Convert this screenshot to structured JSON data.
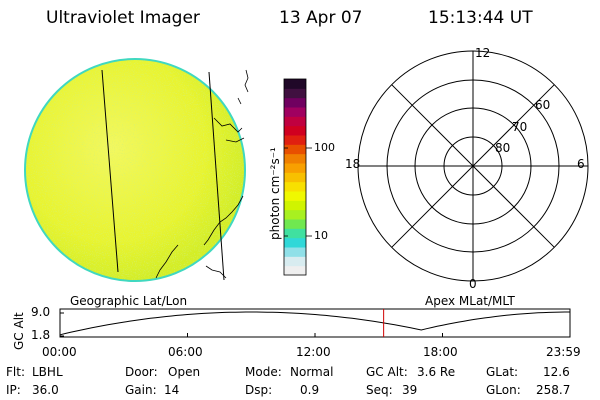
{
  "header": {
    "instrument": "Ultraviolet Imager",
    "date": "13 Apr 07",
    "time": "15:13:44 UT"
  },
  "colorbar": {
    "unit_label": "photon cm⁻²s⁻¹",
    "ticks": [
      "100",
      "10"
    ],
    "colors": [
      "#efefef",
      "#d8ecf0",
      "#90e0e8",
      "#30d8d8",
      "#40e0a0",
      "#70e850",
      "#a8f020",
      "#d0f400",
      "#f0f800",
      "#f8e000",
      "#f8c000",
      "#f8a000",
      "#f08000",
      "#e85000",
      "#e02010",
      "#d00020",
      "#c00040",
      "#a00060",
      "#700060",
      "#401040",
      "#200828"
    ]
  },
  "polar": {
    "lat_labels": [
      "80",
      "70",
      "60"
    ],
    "mlt_labels": {
      "top": "12",
      "right": "6",
      "bottom": "0",
      "left": "18"
    }
  },
  "timeline": {
    "left_title": "Geographic Lat/Lon",
    "right_title": "Apex MLat/MLT",
    "y_axis_label": "GC Alt",
    "y_ticks": [
      "9.0",
      "1.8"
    ],
    "x_ticks": [
      "00:00",
      "06:00",
      "12:00",
      "18:00",
      "23:59"
    ],
    "marker_hour": 15.23
  },
  "info": {
    "filter_label": "Flt:",
    "filter_value": "LBHL",
    "door_label": "Door:",
    "door_value": "Open",
    "mode_label": "Mode:",
    "mode_value": "Normal",
    "gcalt_label": "GC Alt:",
    "gcalt_value": "3.6 Re",
    "glat_label": "GLat:",
    "glat_value": "12.6",
    "ip_label": "IP:",
    "ip_value": "36.0",
    "gain_label": "Gain:",
    "gain_value": "14",
    "dsp_label": "Dsp:",
    "dsp_value": "0.9",
    "seq_label": "Seq:",
    "seq_value": "39",
    "glon_label": "GLon:",
    "glon_value": "258.7"
  }
}
